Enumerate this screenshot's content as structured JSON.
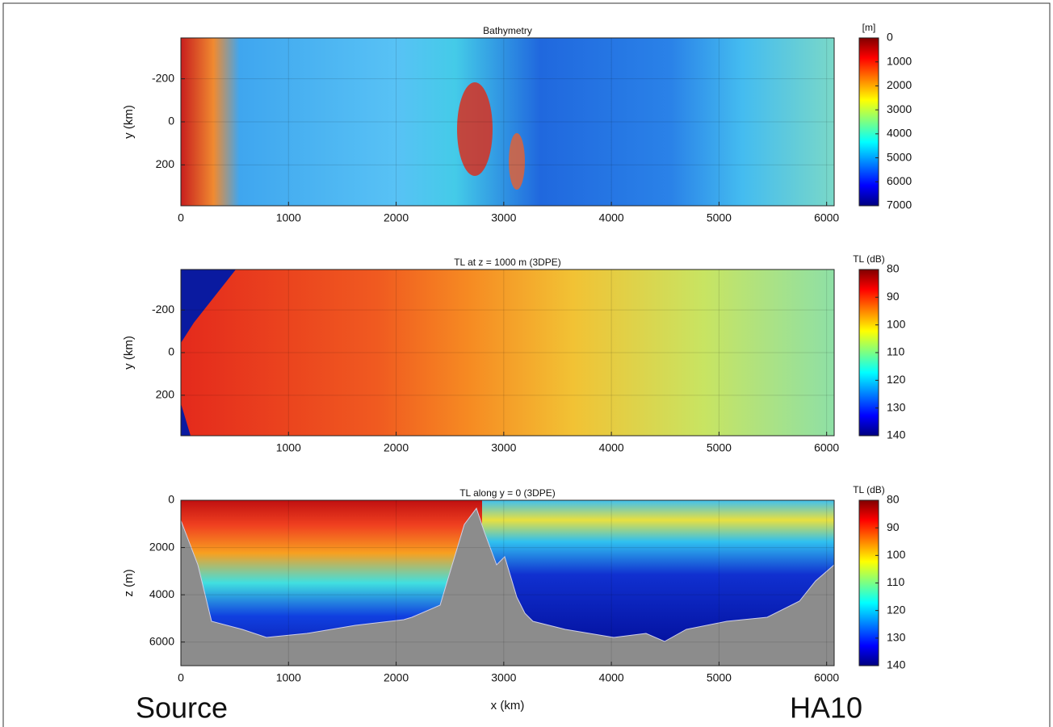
{
  "chart_data": [
    {
      "type": "heatmap",
      "title": "Bathymetry",
      "ylabel": "y (km)",
      "xlim": [
        0,
        6070
      ],
      "xticks": [
        0,
        1000,
        2000,
        3000,
        4000,
        5000,
        6000
      ],
      "ylim": [
        390,
        -390
      ],
      "yticks": [
        -200,
        0,
        200
      ],
      "grid": true,
      "colorbar": {
        "label": "[m]",
        "lim": [
          7000,
          0
        ],
        "ticks": [
          0,
          1000,
          2000,
          3000,
          4000,
          5000,
          6000,
          7000
        ]
      }
    },
    {
      "type": "heatmap",
      "title": "TL at z = 1000 m (3DPE)",
      "ylabel": "y (km)",
      "xlim": [
        0,
        6070
      ],
      "xticks": [
        1000,
        2000,
        3000,
        4000,
        5000,
        6000
      ],
      "ylim": [
        390,
        -390
      ],
      "yticks": [
        -200,
        0,
        200
      ],
      "grid": true,
      "colorbar": {
        "label": "TL (dB)",
        "lim": [
          140,
          80
        ],
        "ticks": [
          80,
          90,
          100,
          110,
          120,
          130,
          140
        ]
      }
    },
    {
      "type": "heatmap",
      "title": "TL along y = 0 (3DPE)",
      "ylabel": "z (m)",
      "xlabel": "x (km)",
      "xlim": [
        0,
        6070
      ],
      "xticks": [
        0,
        1000,
        2000,
        3000,
        4000,
        5000,
        6000
      ],
      "ylim": [
        7000,
        0
      ],
      "yticks": [
        0,
        2000,
        4000,
        6000
      ],
      "grid": true,
      "colorbar": {
        "label": "TL (dB)",
        "lim": [
          140,
          80
        ],
        "ticks": [
          80,
          90,
          100,
          110,
          120,
          130,
          140
        ]
      }
    }
  ],
  "annotations": [
    "Source",
    "HA10"
  ]
}
